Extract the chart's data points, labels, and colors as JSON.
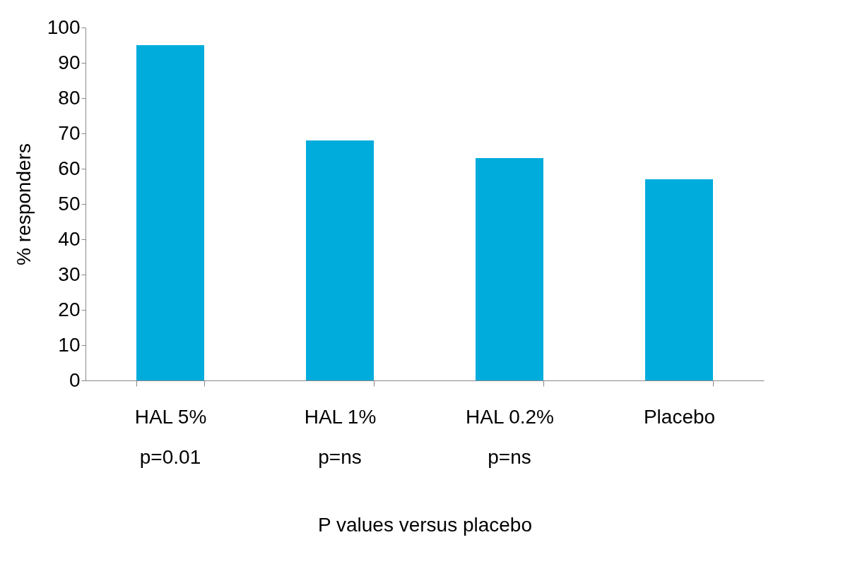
{
  "chart_data": {
    "type": "bar",
    "ylabel": "% responders",
    "xlabel": "P values versus placebo",
    "categories": [
      "HAL 5%",
      "HAL 1%",
      "HAL 0.2%",
      "Placebo"
    ],
    "values": [
      95,
      68,
      63,
      57
    ],
    "color": "#00acdc",
    "ylim": [
      0,
      100
    ],
    "yticks": [
      0,
      10,
      20,
      30,
      40,
      50,
      60,
      70,
      80,
      90,
      100
    ],
    "grid": false,
    "annotations": [
      "p=0.01",
      "p=ns",
      "p=ns"
    ]
  }
}
